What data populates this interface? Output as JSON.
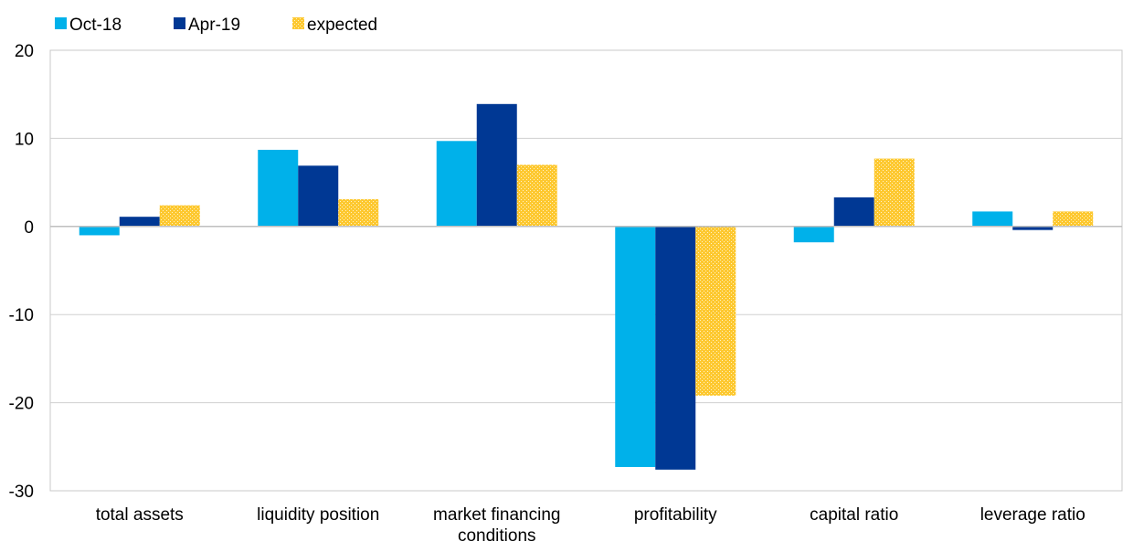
{
  "chart_data": {
    "type": "bar",
    "title": "",
    "xlabel": "",
    "ylabel": "",
    "ylim": [
      -30,
      20
    ],
    "yticks": [
      20,
      10,
      0,
      -10,
      -20,
      -30
    ],
    "grid": true,
    "legend_position": "top-left",
    "categories": [
      [
        "total assets"
      ],
      [
        "liquidity position"
      ],
      [
        "market financing",
        "conditions"
      ],
      [
        "profitability"
      ],
      [
        "capital ratio"
      ],
      [
        "leverage ratio"
      ]
    ],
    "series": [
      {
        "name": "Oct-18",
        "color": "#00b1ea",
        "pattern": "solid",
        "values": [
          -1.0,
          8.7,
          9.7,
          -27.3,
          -1.8,
          1.7
        ]
      },
      {
        "name": "Apr-19",
        "color": "#003894",
        "pattern": "solid",
        "values": [
          1.1,
          6.9,
          13.9,
          -27.6,
          3.3,
          -0.4
        ]
      },
      {
        "name": "expected",
        "color": "#fdc82f",
        "pattern": "dotted",
        "values": [
          2.4,
          3.1,
          7.0,
          -19.2,
          7.7,
          1.7
        ]
      }
    ]
  }
}
